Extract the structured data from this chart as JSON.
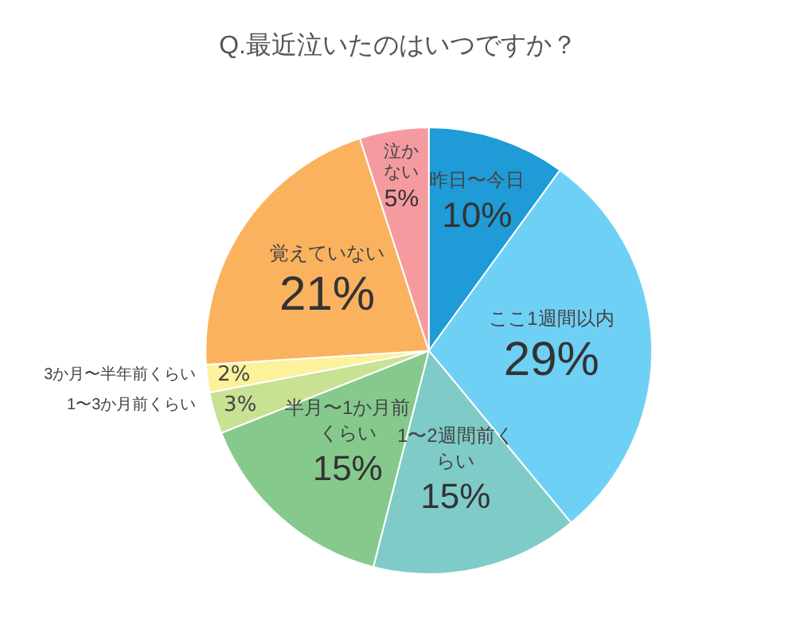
{
  "chart_data": {
    "type": "pie",
    "title": "Q.最近泣いたのはいつですか？",
    "categories": [
      "昨日〜今日",
      "ここ1週間以内",
      "1〜2週間前くらい",
      "半月〜1か月前くらい",
      "1〜3か月前くらい",
      "3か月〜半年前くらい",
      "覚えていない",
      "泣かない"
    ],
    "values": [
      10,
      29,
      15,
      15,
      3,
      2,
      21,
      5
    ],
    "colors": [
      "#1f9bd7",
      "#6fd0f6",
      "#7fcbc7",
      "#86c98d",
      "#c8e193",
      "#fcf29c",
      "#fbb25f",
      "#f59ba0"
    ],
    "value_labels": [
      "10%",
      "29%",
      "15%",
      "15%",
      "3%",
      "2%",
      "21%",
      "5%"
    ],
    "legend": false
  }
}
